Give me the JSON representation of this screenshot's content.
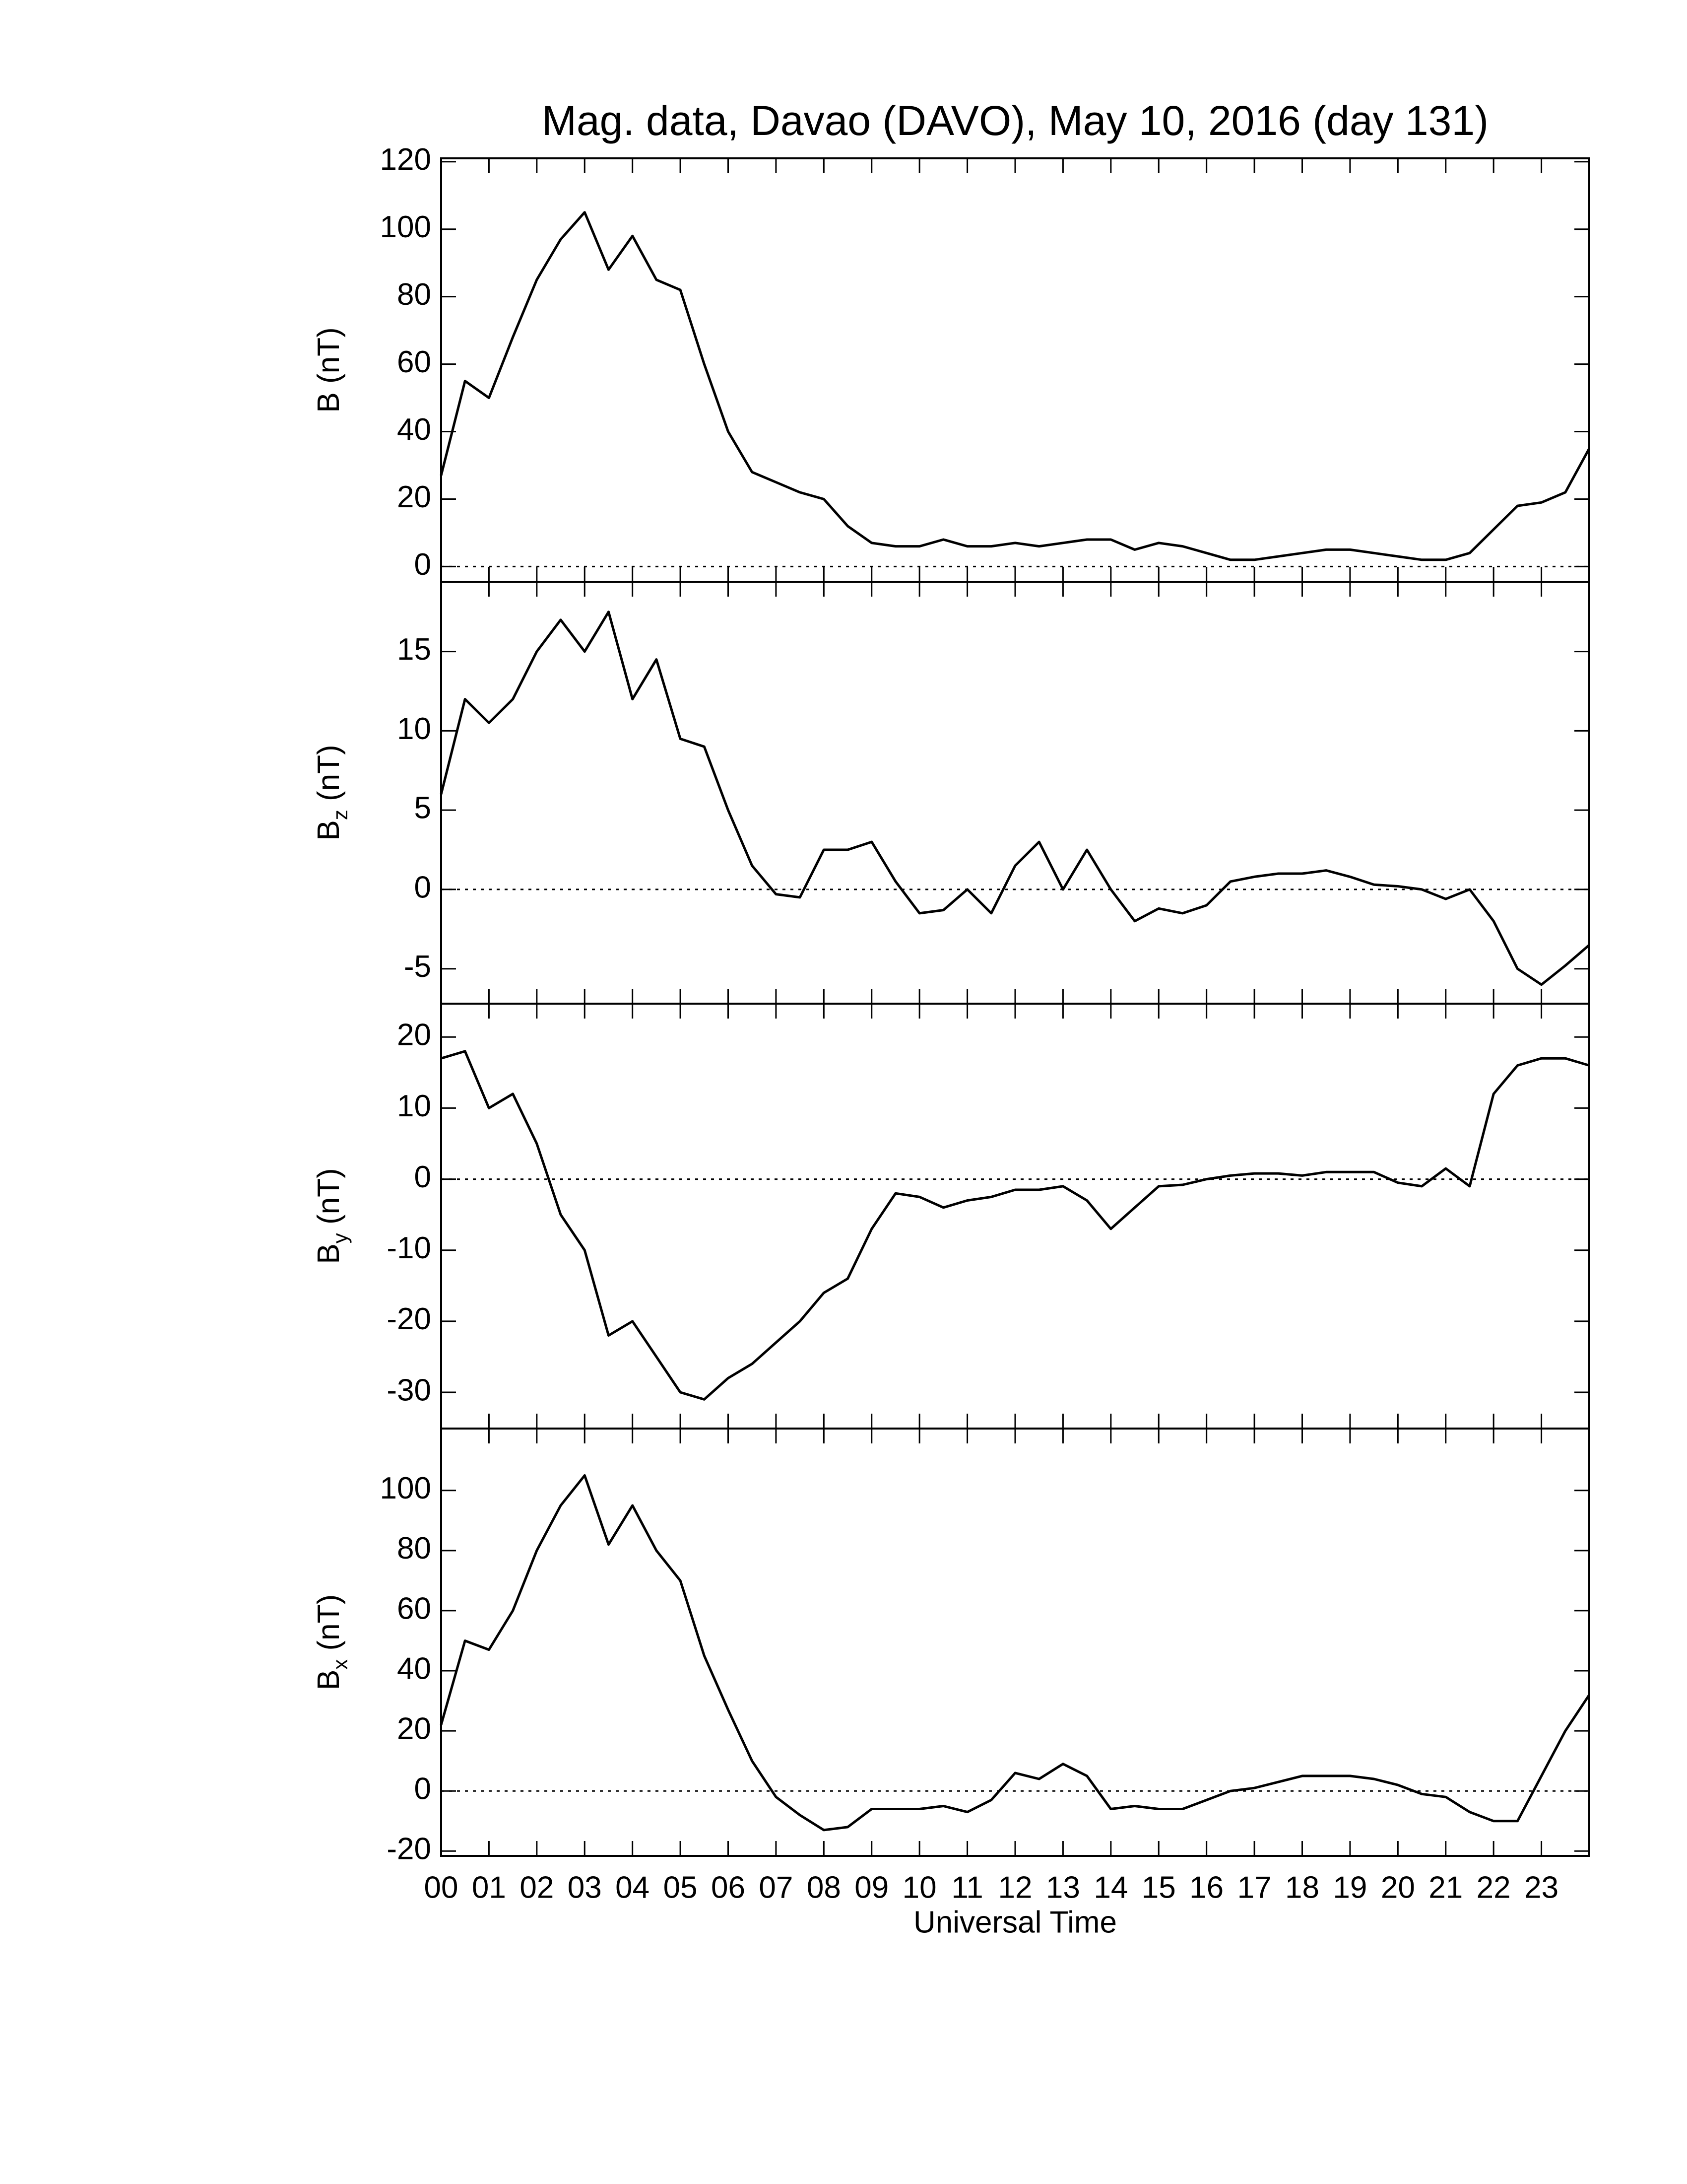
{
  "chart_data": [
    {
      "type": "line",
      "title": "Mag. data, Davao (DAVO), May 10, 2016 (day 131)",
      "ylabel": [
        "B (nT)"
      ],
      "x": [
        0,
        0.5,
        1,
        1.5,
        2,
        2.5,
        3,
        3.5,
        4,
        4.5,
        5,
        5.5,
        6,
        6.5,
        7,
        7.5,
        8,
        8.5,
        9,
        9.5,
        10,
        10.5,
        11,
        11.5,
        12,
        12.5,
        13,
        13.5,
        14,
        14.5,
        15,
        15.5,
        16,
        16.5,
        17,
        17.5,
        18,
        18.5,
        19,
        19.5,
        20,
        20.5,
        21,
        21.5,
        22,
        22.5,
        23,
        23.5,
        24
      ],
      "series": [
        {
          "color": "#000000",
          "values": [
            27,
            55,
            50,
            68,
            85,
            97,
            105,
            88,
            98,
            85,
            82,
            60,
            40,
            28,
            25,
            22,
            20,
            12,
            7,
            6,
            6,
            8,
            6,
            6,
            7,
            6,
            7,
            8,
            8,
            5,
            7,
            6,
            4,
            2,
            2,
            3,
            4,
            5,
            5,
            4,
            3,
            2,
            2,
            4,
            11,
            18,
            19,
            22,
            35
          ]
        }
      ],
      "xlim": [
        0,
        24
      ],
      "ylim": [
        -4.5,
        121
      ],
      "yticks": [
        0,
        20,
        40,
        60,
        80,
        100,
        120
      ],
      "reference_line": 0
    },
    {
      "type": "line",
      "ylabel": [
        "B",
        "z",
        " (nT)"
      ],
      "x": [
        0,
        0.5,
        1,
        1.5,
        2,
        2.5,
        3,
        3.5,
        4,
        4.5,
        5,
        5.5,
        6,
        6.5,
        7,
        7.5,
        8,
        8.5,
        9,
        9.5,
        10,
        10.5,
        11,
        11.5,
        12,
        12.5,
        13,
        13.5,
        14,
        14.5,
        15,
        15.5,
        16,
        16.5,
        17,
        17.5,
        18,
        18.5,
        19,
        19.5,
        20,
        20.5,
        21,
        21.5,
        22,
        22.5,
        23,
        23.5,
        24
      ],
      "series": [
        {
          "color": "#000000",
          "values": [
            6,
            12,
            10.5,
            12,
            15,
            17,
            15,
            17.5,
            12,
            14.5,
            9.5,
            9,
            5,
            1.5,
            -0.3,
            -0.5,
            2.5,
            2.5,
            3,
            0.5,
            -1.5,
            -1.3,
            0,
            -1.5,
            1.5,
            3,
            0,
            2.5,
            0,
            -2,
            -1.2,
            -1.5,
            -1,
            0.5,
            0.8,
            1,
            1,
            1.2,
            0.8,
            0.3,
            0.2,
            0,
            -0.6,
            0,
            -2,
            -5,
            -6,
            -4.8,
            -3.5
          ]
        }
      ],
      "xlim": [
        0,
        24
      ],
      "ylim": [
        -7.2,
        19.4
      ],
      "yticks": [
        -5,
        0,
        5,
        10,
        15
      ],
      "reference_line": 0
    },
    {
      "type": "line",
      "ylabel": [
        "B",
        "y",
        " (nT)"
      ],
      "x": [
        0,
        0.5,
        1,
        1.5,
        2,
        2.5,
        3,
        3.5,
        4,
        4.5,
        5,
        5.5,
        6,
        6.5,
        7,
        7.5,
        8,
        8.5,
        9,
        9.5,
        10,
        10.5,
        11,
        11.5,
        12,
        12.5,
        13,
        13.5,
        14,
        14.5,
        15,
        15.5,
        16,
        16.5,
        17,
        17.5,
        18,
        18.5,
        19,
        19.5,
        20,
        20.5,
        21,
        21.5,
        22,
        22.5,
        23,
        23.5,
        24
      ],
      "series": [
        {
          "color": "#000000",
          "values": [
            17,
            18,
            10,
            12,
            5,
            -5,
            -10,
            -22,
            -20,
            -25,
            -30,
            -31,
            -28,
            -26,
            -23,
            -20,
            -16,
            -14,
            -7,
            -2,
            -2.5,
            -4,
            -3,
            -2.5,
            -1.5,
            -1.5,
            -1,
            -3,
            -7,
            -4,
            -1,
            -0.8,
            0,
            0.5,
            0.8,
            0.8,
            0.5,
            1,
            1,
            1,
            -0.5,
            -1,
            1.5,
            -1,
            12,
            16,
            17,
            17,
            16
          ]
        }
      ],
      "xlim": [
        0,
        24
      ],
      "ylim": [
        -35.1,
        24.7
      ],
      "yticks": [
        -30,
        -20,
        -10,
        0,
        10,
        20
      ],
      "reference_line": 0
    },
    {
      "type": "line",
      "ylabel": [
        "B",
        "x",
        " (nT)"
      ],
      "xlabel": "Universal Time",
      "x": [
        0,
        0.5,
        1,
        1.5,
        2,
        2.5,
        3,
        3.5,
        4,
        4.5,
        5,
        5.5,
        6,
        6.5,
        7,
        7.5,
        8,
        8.5,
        9,
        9.5,
        10,
        10.5,
        11,
        11.5,
        12,
        12.5,
        13,
        13.5,
        14,
        14.5,
        15,
        15.5,
        16,
        16.5,
        17,
        17.5,
        18,
        18.5,
        19,
        19.5,
        20,
        20.5,
        21,
        21.5,
        22,
        22.5,
        23,
        23.5,
        24
      ],
      "series": [
        {
          "color": "#000000",
          "values": [
            22,
            50,
            47,
            60,
            80,
            95,
            105,
            82,
            95,
            80,
            70,
            45,
            27,
            10,
            -2,
            -8,
            -13,
            -12,
            -6,
            -6,
            -6,
            -5,
            -7,
            -3,
            6,
            4,
            9,
            5,
            -6,
            -5,
            -6,
            -6,
            -3,
            0,
            1,
            3,
            5,
            5,
            5,
            4,
            2,
            -1,
            -2,
            -7,
            -10,
            -10,
            5,
            20,
            32
          ]
        }
      ],
      "xlim": [
        0,
        24
      ],
      "ylim": [
        -21.6,
        120.6
      ],
      "yticks": [
        -20,
        0,
        20,
        40,
        60,
        80,
        100
      ],
      "xticks": [
        {
          "value": 0,
          "label": "00"
        },
        {
          "value": 1,
          "label": "01"
        },
        {
          "value": 2,
          "label": "02"
        },
        {
          "value": 3,
          "label": "03"
        },
        {
          "value": 4,
          "label": "04"
        },
        {
          "value": 5,
          "label": "05"
        },
        {
          "value": 6,
          "label": "06"
        },
        {
          "value": 7,
          "label": "07"
        },
        {
          "value": 8,
          "label": "08"
        },
        {
          "value": 9,
          "label": "09"
        },
        {
          "value": 10,
          "label": "10"
        },
        {
          "value": 11,
          "label": "11"
        },
        {
          "value": 12,
          "label": "12"
        },
        {
          "value": 13,
          "label": "13"
        },
        {
          "value": 14,
          "label": "14"
        },
        {
          "value": 15,
          "label": "15"
        },
        {
          "value": 16,
          "label": "16"
        },
        {
          "value": 17,
          "label": "17"
        },
        {
          "value": 18,
          "label": "18"
        },
        {
          "value": 19,
          "label": "19"
        },
        {
          "value": 20,
          "label": "20"
        },
        {
          "value": 21,
          "label": "21"
        },
        {
          "value": 22,
          "label": "22"
        },
        {
          "value": 23,
          "label": "23"
        }
      ],
      "reference_line": 0
    }
  ]
}
